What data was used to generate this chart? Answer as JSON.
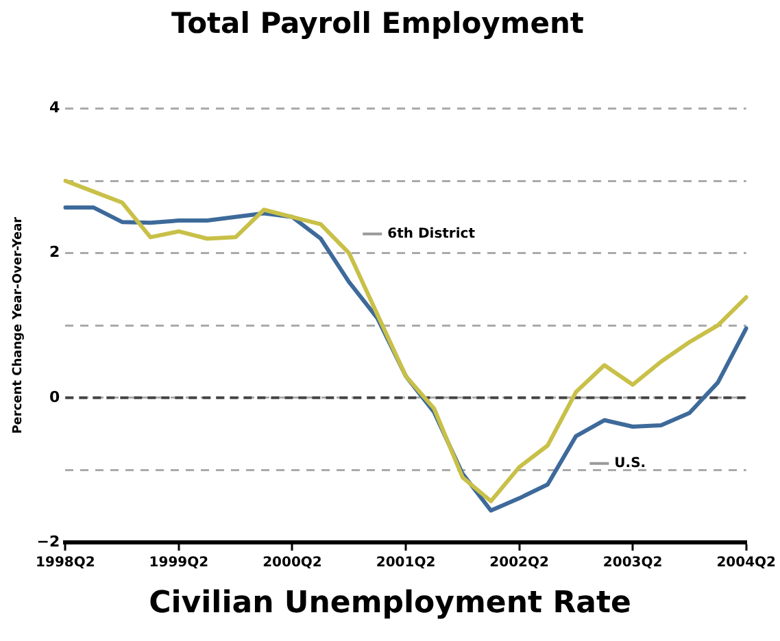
{
  "chart_data": {
    "type": "line",
    "title": "Total Payroll Employment",
    "ylabel": "Percent Change Year-Over-Year",
    "categories": [
      "1998Q2",
      null,
      null,
      null,
      "1999Q2",
      null,
      null,
      null,
      "2000Q2",
      null,
      null,
      null,
      "2001Q2",
      null,
      null,
      null,
      "2002Q2",
      null,
      null,
      null,
      "2003Q2",
      null,
      null,
      null,
      "2004Q2"
    ],
    "series": [
      {
        "name": "6th District",
        "color": "#c8c048",
        "values": [
          3.0,
          2.85,
          2.7,
          2.22,
          2.3,
          2.2,
          2.22,
          2.6,
          2.5,
          2.4,
          2.0,
          1.15,
          0.3,
          -0.15,
          -1.1,
          -1.43,
          -0.96,
          -0.66,
          0.08,
          0.45,
          0.18,
          0.5,
          0.77,
          1.0,
          1.39
        ]
      },
      {
        "name": "U.S.",
        "color": "#3d6a9a",
        "values": [
          2.63,
          2.63,
          2.43,
          2.42,
          2.45,
          2.45,
          2.5,
          2.55,
          2.5,
          2.2,
          1.6,
          1.1,
          0.3,
          -0.2,
          -1.05,
          -1.56,
          -1.39,
          -1.2,
          -0.53,
          -0.31,
          -0.4,
          -0.38,
          -0.21,
          0.21,
          0.96
        ]
      }
    ],
    "ylim": [
      -2,
      4
    ],
    "yticks": [
      -2,
      {
        "value": -1,
        "label": null
      },
      0,
      {
        "value": 1,
        "label": null
      },
      2,
      {
        "value": 3,
        "label": null
      },
      4
    ],
    "ref_lines": [
      {
        "axis": "y",
        "value": 0,
        "color": "#444444",
        "line_style": "dashed"
      }
    ],
    "grid": "y",
    "legend": false,
    "marker": "none",
    "line_style": "solid",
    "annotations": [
      "Civilian Unemployment Rate"
    ]
  }
}
